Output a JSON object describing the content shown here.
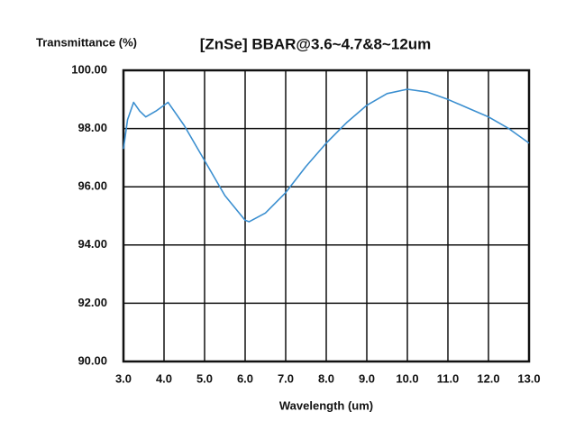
{
  "chart_data": {
    "type": "line",
    "title": "[ZnSe] BBAR@3.6~4.7&8~12um",
    "y_label": "Transmittance (%)",
    "x_label": "Wavelength (um)",
    "x": [
      3.0,
      3.1,
      3.25,
      3.4,
      3.55,
      3.8,
      4.1,
      4.5,
      5.0,
      5.5,
      6.0,
      6.1,
      6.5,
      7.0,
      7.5,
      8.0,
      8.5,
      9.0,
      9.5,
      10.0,
      10.5,
      11.0,
      11.5,
      12.0,
      12.5,
      13.0
    ],
    "series": [
      {
        "name": "ZnSe BBAR",
        "color": "#3b8fd0",
        "values": [
          97.3,
          98.3,
          98.9,
          98.6,
          98.4,
          98.6,
          98.9,
          98.1,
          96.9,
          95.7,
          94.85,
          94.8,
          95.1,
          95.8,
          96.7,
          97.5,
          98.2,
          98.8,
          99.2,
          99.35,
          99.25,
          99.0,
          98.7,
          98.4,
          98.0,
          97.5
        ]
      }
    ],
    "xlim": [
      3,
      13
    ],
    "ylim": [
      90,
      100
    ],
    "xticks": [
      {
        "value": 3,
        "label": "3.0"
      },
      {
        "value": 4,
        "label": "4.0"
      },
      {
        "value": 5,
        "label": "5.0"
      },
      {
        "value": 6,
        "label": "6.0"
      },
      {
        "value": 7,
        "label": "7.0"
      },
      {
        "value": 8,
        "label": "8.0"
      },
      {
        "value": 9,
        "label": "9.0"
      },
      {
        "value": 10,
        "label": "10.0"
      },
      {
        "value": 11,
        "label": "11.0"
      },
      {
        "value": 12,
        "label": "12.0"
      },
      {
        "value": 13,
        "label": "13.0"
      }
    ],
    "yticks": [
      {
        "value": 90,
        "label": "90.00"
      },
      {
        "value": 92,
        "label": "92.00"
      },
      {
        "value": 94,
        "label": "94.00"
      },
      {
        "value": 96,
        "label": "96.00"
      },
      {
        "value": 98,
        "label": "98.00"
      },
      {
        "value": 100,
        "label": "100.00"
      }
    ],
    "grid": true
  }
}
